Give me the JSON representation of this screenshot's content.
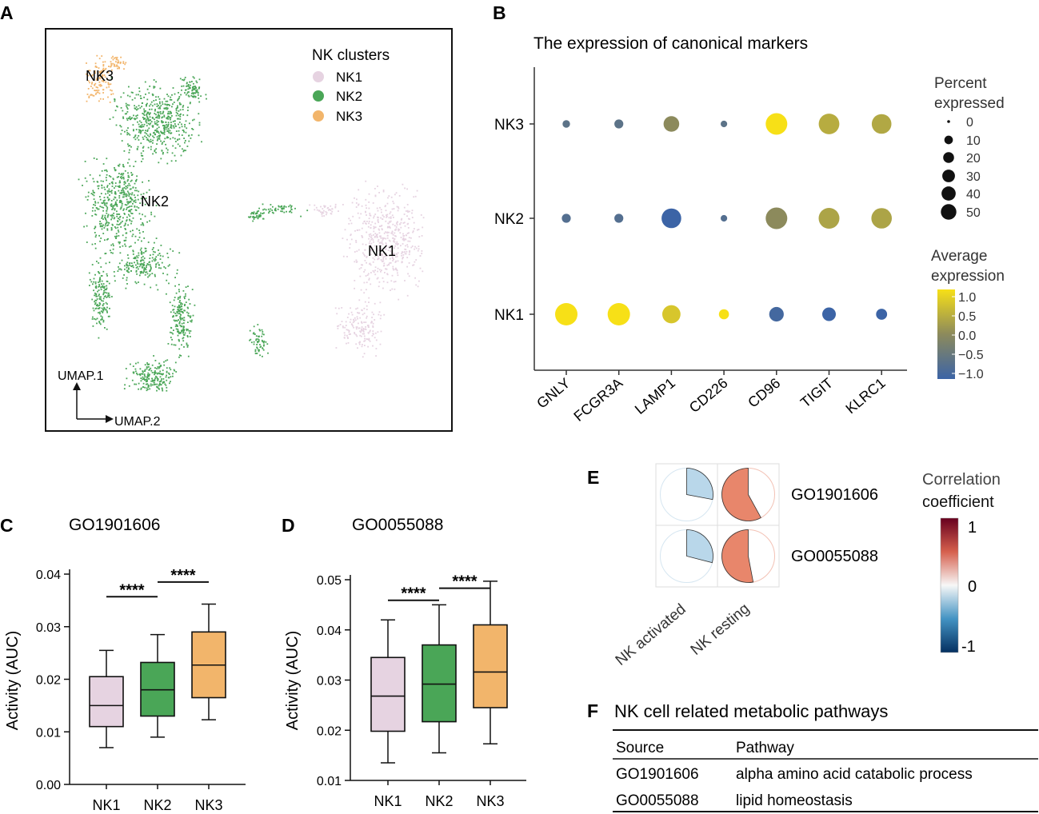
{
  "panels": {
    "A": "A",
    "B": "B",
    "C": "C",
    "D": "D",
    "E": "E",
    "F": "F"
  },
  "colors": {
    "NK1": "#e6d3e1",
    "NK2": "#4aa657",
    "NK3": "#f2b56b",
    "low": "#3c64a6",
    "mid": "#8c8a5c",
    "high": "#f7e017"
  },
  "chart_data": [
    {
      "id": "A",
      "type": "scatter",
      "legend_title": "NK clusters",
      "clusters": [
        "NK1",
        "NK2",
        "NK3"
      ],
      "cluster_labels": [
        "NK3",
        "NK2",
        "NK1"
      ],
      "x_axis_label": "UMAP.2",
      "y_axis_label": "UMAP.1"
    },
    {
      "id": "B",
      "type": "scatter",
      "title": "The expression of canonical markers",
      "categories": [
        "GNLY",
        "FCGR3A",
        "LAMP1",
        "CD226",
        "CD96",
        "TIGIT",
        "KLRC1"
      ],
      "groups": [
        "NK3",
        "NK2",
        "NK1"
      ],
      "percent_expressed": [
        [
          2,
          4,
          22,
          1,
          50,
          45,
          40
        ],
        [
          4,
          4,
          40,
          1,
          50,
          46,
          44
        ],
        [
          55,
          55,
          33,
          6,
          18,
          15,
          8
        ]
      ],
      "avg_expression": [
        [
          -0.6,
          -0.6,
          0.0,
          -0.6,
          1.0,
          0.4,
          0.35
        ],
        [
          -0.7,
          -0.7,
          -1.0,
          -0.7,
          0.0,
          0.3,
          0.3
        ],
        [
          1.0,
          1.0,
          0.7,
          1.0,
          -0.9,
          -1.0,
          -1.0
        ]
      ],
      "size_legend_title_1": "Percent",
      "size_legend_title_2": "expressed",
      "size_legend": [
        "0",
        "10",
        "20",
        "30",
        "40",
        "50"
      ],
      "color_legend_title_1": "Average",
      "color_legend_title_2": "expression",
      "color_ticks": [
        "1.0",
        "0.5",
        "0.0",
        "−0.5",
        "−1.0"
      ]
    },
    {
      "id": "C",
      "type": "box",
      "title": "GO1901606",
      "ylabel": "Activity (AUC)",
      "ylim": [
        0,
        0.04
      ],
      "yticks": [
        "0.00",
        "0.01",
        "0.02",
        "0.03",
        "0.04"
      ],
      "categories": [
        "NK1",
        "NK2",
        "NK3"
      ],
      "boxes": [
        {
          "whisker_low": 0.007,
          "q1": 0.011,
          "median": 0.015,
          "q3": 0.0205,
          "whisker_high": 0.0255
        },
        {
          "whisker_low": 0.009,
          "q1": 0.013,
          "median": 0.018,
          "q3": 0.0232,
          "whisker_high": 0.0285
        },
        {
          "whisker_low": 0.0123,
          "q1": 0.0165,
          "median": 0.0227,
          "q3": 0.029,
          "whisker_high": 0.0343
        }
      ],
      "significance": [
        {
          "from": 0,
          "to": 1,
          "label": "****",
          "y": 0.0357
        },
        {
          "from": 1,
          "to": 2,
          "label": "****",
          "y": 0.0385
        }
      ]
    },
    {
      "id": "D",
      "type": "box",
      "title": "GO0055088",
      "ylabel": "Activity (AUC)",
      "ylim": [
        0.01,
        0.05
      ],
      "yticks": [
        "0.01",
        "0.02",
        "0.03",
        "0.04",
        "0.05"
      ],
      "categories": [
        "NK1",
        "NK2",
        "NK3"
      ],
      "boxes": [
        {
          "whisker_low": 0.0135,
          "q1": 0.0198,
          "median": 0.0268,
          "q3": 0.0345,
          "whisker_high": 0.042
        },
        {
          "whisker_low": 0.0155,
          "q1": 0.0217,
          "median": 0.0292,
          "q3": 0.037,
          "whisker_high": 0.045
        },
        {
          "whisker_low": 0.0173,
          "q1": 0.0245,
          "median": 0.0316,
          "q3": 0.041,
          "whisker_high": 0.0497
        }
      ],
      "significance": [
        {
          "from": 0,
          "to": 1,
          "label": "****",
          "y": 0.0459
        },
        {
          "from": 1,
          "to": 2,
          "label": "****",
          "y": 0.0483
        }
      ]
    },
    {
      "id": "E",
      "type": "heatmap",
      "rows": [
        "GO1901606",
        "GO0055088"
      ],
      "columns": [
        "NK activated",
        "NK resting"
      ],
      "values": [
        [
          -0.28,
          0.58
        ],
        [
          -0.29,
          0.53
        ]
      ],
      "colorbar_title_1": "Correlation",
      "colorbar_title_2": "coefficient",
      "colorbar_ticks": [
        "1",
        "0",
        "-1"
      ],
      "range": [
        -1,
        1
      ]
    },
    {
      "id": "F",
      "type": "table",
      "title": "NK cell related metabolic pathways",
      "columns": [
        "Source",
        "Pathway"
      ],
      "rows": [
        [
          "GO1901606",
          "alpha amino acid catabolic process"
        ],
        [
          "GO0055088",
          "lipid homeostasis"
        ]
      ]
    }
  ]
}
